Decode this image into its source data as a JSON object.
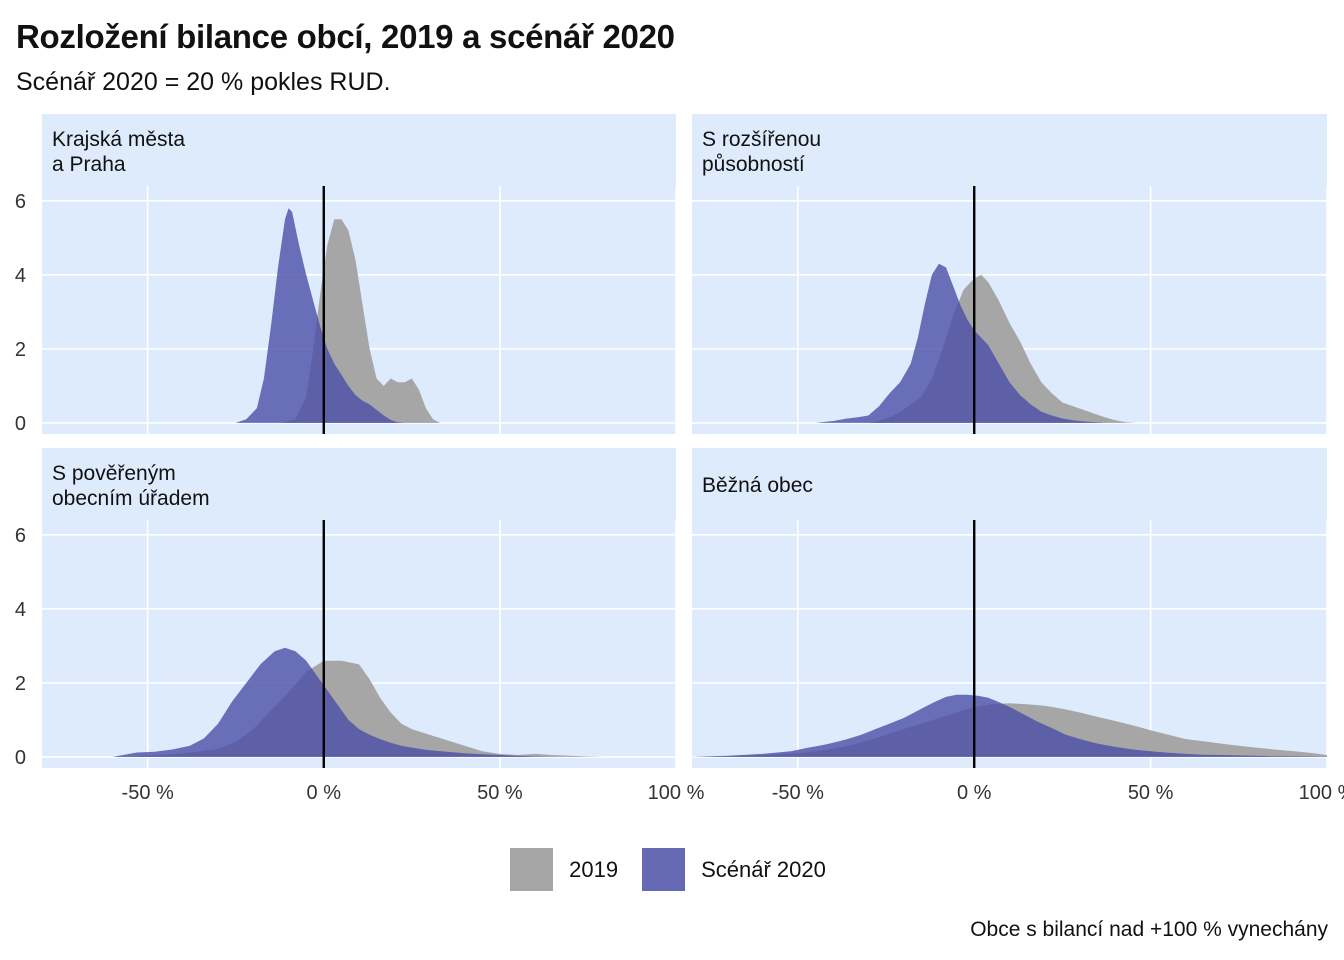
{
  "title": "Rozložení bilance obcí, 2019 a scénář 2020",
  "subtitle": "Scénář 2020 = 20 % pokles RUD.",
  "caption": "Obce s bilancí nad +100 % vynechány",
  "colors": {
    "panel_bg": "#deebfd",
    "grid": "#ffffff",
    "series_2019": "#a6a6a6",
    "series_2020": "#4b4fa6",
    "zero_line": "#000000"
  },
  "chart_data": {
    "type": "area",
    "chart_kind": "density, faceted 2x2",
    "x_tick_labels": [
      "-50 %",
      "0 %",
      "50 %",
      "100 %"
    ],
    "x_ticks": [
      -50,
      0,
      50,
      100
    ],
    "xlim": [
      -80,
      100
    ],
    "y_ticks": [
      0,
      2,
      4,
      6
    ],
    "ylim": [
      -0.3,
      6.4
    ],
    "grid": true,
    "vline_x": 0,
    "legend_position": "bottom",
    "series_names": [
      "2019",
      "Scénář 2020"
    ],
    "panels": [
      {
        "label": "Krajská města\na Praha",
        "series": [
          {
            "name": "2019",
            "x": [
              -12,
              -8,
              -5,
              -3,
              -1,
              1,
              3,
              5,
              7,
              9,
              11,
              13,
              15,
              17,
              19,
              21,
              23,
              25,
              27,
              29,
              31,
              33
            ],
            "y": [
              0,
              0.1,
              0.7,
              2.0,
              3.5,
              4.8,
              5.5,
              5.5,
              5.2,
              4.4,
              3.2,
              2.0,
              1.2,
              1.0,
              1.2,
              1.1,
              1.1,
              1.2,
              0.9,
              0.4,
              0.1,
              0
            ]
          },
          {
            "name": "Scénář 2020",
            "x": [
              -25,
              -22,
              -19,
              -17,
              -15,
              -13,
              -11,
              -10,
              -9,
              -7,
              -5,
              -3,
              -1,
              1,
              3,
              5,
              7,
              9,
              11,
              13,
              15,
              17,
              19,
              21,
              23
            ],
            "y": [
              0,
              0.1,
              0.4,
              1.2,
              2.6,
              4.2,
              5.5,
              5.8,
              5.7,
              4.8,
              4.0,
              3.3,
              2.6,
              2.0,
              1.6,
              1.3,
              1.0,
              0.75,
              0.6,
              0.5,
              0.35,
              0.2,
              0.08,
              0.02,
              0
            ]
          }
        ]
      },
      {
        "label": "S rozšířenou\npůsobností",
        "series": [
          {
            "name": "2019",
            "x": [
              -30,
              -27,
              -24,
              -21,
              -18,
              -15,
              -12,
              -9,
              -6,
              -3,
              0,
              2,
              4,
              7,
              10,
              13,
              16,
              19,
              22,
              25,
              28,
              31,
              34,
              37,
              40,
              43,
              46
            ],
            "y": [
              0,
              0.05,
              0.15,
              0.3,
              0.5,
              0.7,
              1.2,
              2.0,
              2.9,
              3.6,
              3.9,
              4.0,
              3.8,
              3.3,
              2.7,
              2.2,
              1.6,
              1.1,
              0.8,
              0.55,
              0.45,
              0.35,
              0.25,
              0.15,
              0.07,
              0.02,
              0
            ]
          },
          {
            "name": "Scénář 2020",
            "x": [
              -45,
              -40,
              -36,
              -33,
              -30,
              -27,
              -24,
              -21,
              -18,
              -16,
              -14,
              -12,
              -10,
              -8,
              -6,
              -4,
              -2,
              0,
              2,
              4,
              7,
              10,
              13,
              16,
              19,
              22,
              25,
              28,
              31,
              34,
              37
            ],
            "y": [
              0,
              0.05,
              0.12,
              0.15,
              0.2,
              0.45,
              0.8,
              1.1,
              1.6,
              2.3,
              3.2,
              4.0,
              4.3,
              4.2,
              3.7,
              3.2,
              2.8,
              2.5,
              2.3,
              2.1,
              1.6,
              1.1,
              0.75,
              0.5,
              0.3,
              0.2,
              0.12,
              0.07,
              0.04,
              0.02,
              0
            ]
          }
        ]
      },
      {
        "label": "S pověřeným\nobecním úřadem",
        "series": [
          {
            "name": "2019",
            "x": [
              -60,
              -55,
              -50,
              -45,
              -40,
              -35,
              -30,
              -25,
              -20,
              -15,
              -10,
              -5,
              0,
              5,
              10,
              13,
              16,
              19,
              22,
              25,
              30,
              35,
              40,
              45,
              50,
              55,
              60,
              65,
              70,
              75,
              80
            ],
            "y": [
              0,
              0.02,
              0.04,
              0.06,
              0.1,
              0.15,
              0.22,
              0.4,
              0.75,
              1.25,
              1.75,
              2.3,
              2.6,
              2.6,
              2.5,
              2.1,
              1.6,
              1.2,
              0.9,
              0.75,
              0.6,
              0.45,
              0.3,
              0.15,
              0.08,
              0.05,
              0.08,
              0.05,
              0.03,
              0.01,
              0
            ]
          },
          {
            "name": "Scénář 2020",
            "x": [
              -60,
              -57,
              -53,
              -48,
              -43,
              -38,
              -34,
              -30,
              -26,
              -22,
              -18,
              -14,
              -11,
              -8,
              -5,
              -2,
              1,
              4,
              7,
              10,
              13,
              16,
              19,
              22,
              25,
              30,
              35,
              40,
              45,
              50,
              55,
              60,
              65
            ],
            "y": [
              0,
              0.05,
              0.12,
              0.14,
              0.2,
              0.3,
              0.5,
              0.9,
              1.5,
              2.0,
              2.5,
              2.85,
              2.95,
              2.85,
              2.6,
              2.2,
              1.8,
              1.4,
              1.0,
              0.75,
              0.6,
              0.48,
              0.38,
              0.3,
              0.25,
              0.18,
              0.14,
              0.1,
              0.07,
              0.05,
              0.03,
              0.01,
              0
            ]
          }
        ]
      },
      {
        "label": "Běžná obec",
        "series": [
          {
            "name": "2019",
            "x": [
              -80,
              -70,
              -60,
              -50,
              -45,
              -40,
              -35,
              -30,
              -25,
              -20,
              -15,
              -10,
              -5,
              0,
              5,
              10,
              15,
              20,
              25,
              30,
              35,
              40,
              45,
              50,
              55,
              60,
              65,
              70,
              75,
              80,
              85,
              90,
              95,
              100
            ],
            "y": [
              0,
              0.02,
              0.05,
              0.1,
              0.15,
              0.22,
              0.32,
              0.45,
              0.6,
              0.75,
              0.9,
              1.05,
              1.2,
              1.35,
              1.42,
              1.45,
              1.42,
              1.38,
              1.3,
              1.2,
              1.08,
              0.97,
              0.85,
              0.72,
              0.6,
              0.48,
              0.42,
              0.36,
              0.3,
              0.25,
              0.2,
              0.16,
              0.11,
              0.05
            ]
          },
          {
            "name": "Scénář 2020",
            "x": [
              -80,
              -70,
              -60,
              -52,
              -47,
              -43,
              -40,
              -36,
              -32,
              -28,
              -24,
              -20,
              -16,
              -12,
              -8,
              -5,
              -2,
              1,
              4,
              7,
              10,
              14,
              18,
              22,
              26,
              30,
              35,
              40,
              45,
              50,
              55,
              60,
              65,
              70,
              75,
              80,
              85,
              90,
              95,
              100
            ],
            "y": [
              0,
              0.03,
              0.08,
              0.15,
              0.25,
              0.32,
              0.38,
              0.48,
              0.6,
              0.75,
              0.9,
              1.05,
              1.25,
              1.45,
              1.62,
              1.68,
              1.68,
              1.65,
              1.6,
              1.48,
              1.35,
              1.15,
              0.95,
              0.78,
              0.6,
              0.48,
              0.36,
              0.27,
              0.2,
              0.15,
              0.11,
              0.08,
              0.06,
              0.05,
              0.04,
              0.03,
              0.02,
              0.015,
              0.01,
              0.005
            ]
          }
        ]
      }
    ]
  }
}
